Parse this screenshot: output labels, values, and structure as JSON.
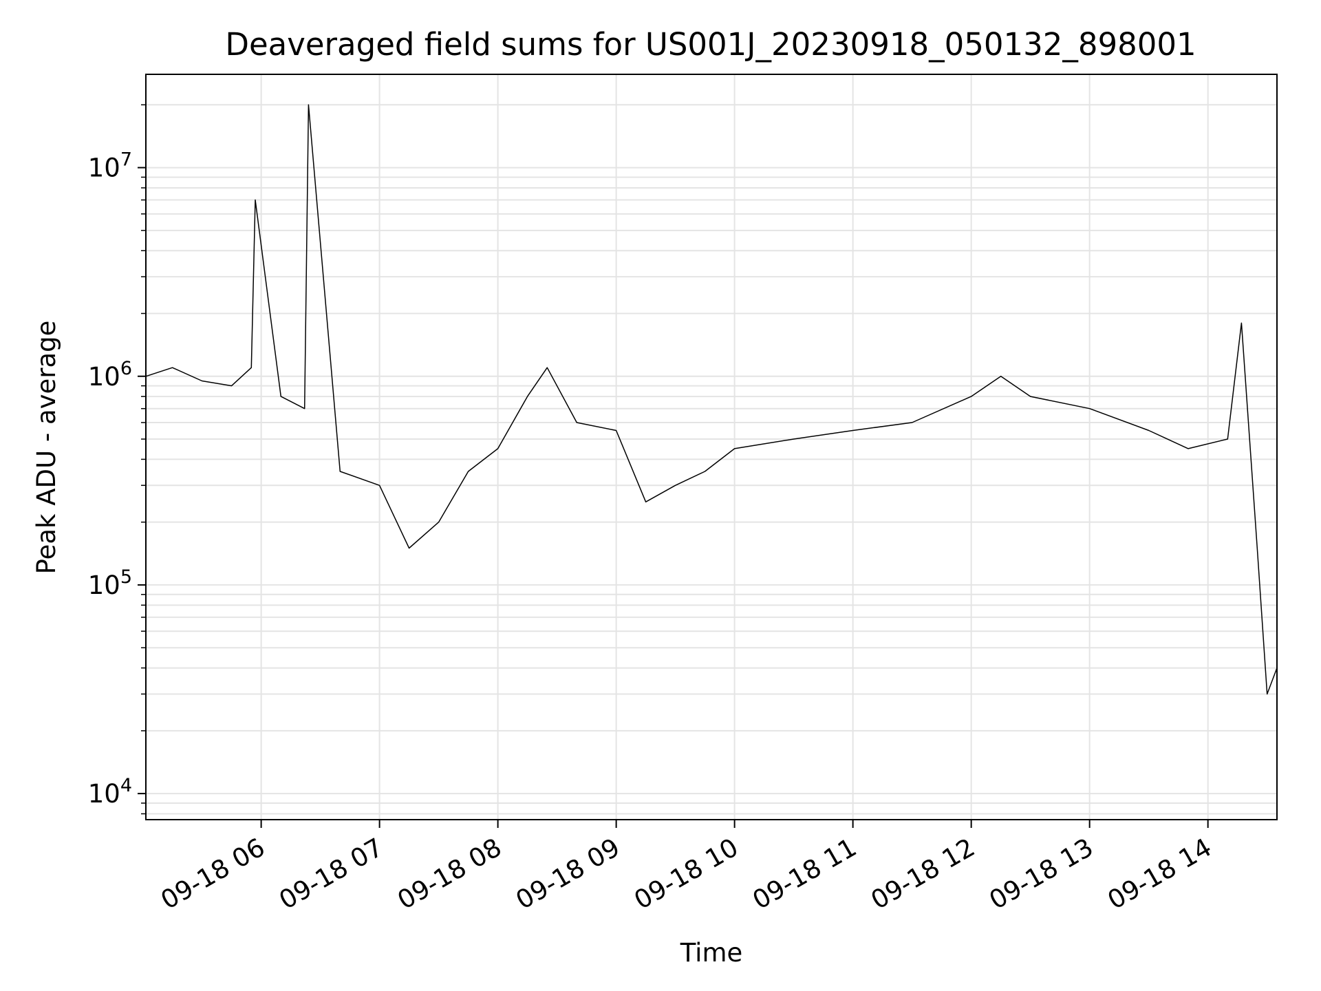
{
  "chart_data": {
    "type": "line",
    "title": "Deaveraged field sums for US001J_20230918_050132_898001",
    "xlabel": "Time",
    "ylabel": "Peak ADU - average",
    "y_scale": "log",
    "ylim": [
      7500,
      28000000
    ],
    "xlim": [
      "2023-09-18 05:01:32",
      "2023-09-18 14:35:00"
    ],
    "grid": true,
    "line_color": "#000000",
    "x_ticks": [
      {
        "time": "2023-09-18 06:00",
        "label": "09-18 06"
      },
      {
        "time": "2023-09-18 07:00",
        "label": "09-18 07"
      },
      {
        "time": "2023-09-18 08:00",
        "label": "09-18 08"
      },
      {
        "time": "2023-09-18 09:00",
        "label": "09-18 09"
      },
      {
        "time": "2023-09-18 10:00",
        "label": "09-18 10"
      },
      {
        "time": "2023-09-18 11:00",
        "label": "09-18 11"
      },
      {
        "time": "2023-09-18 12:00",
        "label": "09-18 12"
      },
      {
        "time": "2023-09-18 13:00",
        "label": "09-18 13"
      },
      {
        "time": "2023-09-18 14:00",
        "label": "09-18 14"
      }
    ],
    "y_ticks": [
      {
        "value": 10000,
        "base": "10",
        "exp": "4"
      },
      {
        "value": 100000,
        "base": "10",
        "exp": "5"
      },
      {
        "value": 1000000,
        "base": "10",
        "exp": "6"
      },
      {
        "value": 10000000,
        "base": "10",
        "exp": "7"
      }
    ],
    "series": [
      {
        "values": [
          {
            "t": "2023-09-18 05:01:32",
            "y": 1000000
          },
          {
            "t": "2023-09-18 05:15",
            "y": 1100000
          },
          {
            "t": "2023-09-18 05:30",
            "y": 950000
          },
          {
            "t": "2023-09-18 05:45",
            "y": 900000
          },
          {
            "t": "2023-09-18 05:55",
            "y": 1100000
          },
          {
            "t": "2023-09-18 05:57",
            "y": 7000000
          },
          {
            "t": "2023-09-18 06:10",
            "y": 800000
          },
          {
            "t": "2023-09-18 06:22",
            "y": 700000
          },
          {
            "t": "2023-09-18 06:24",
            "y": 20000000
          },
          {
            "t": "2023-09-18 06:40",
            "y": 350000
          },
          {
            "t": "2023-09-18 07:00",
            "y": 300000
          },
          {
            "t": "2023-09-18 07:15",
            "y": 150000
          },
          {
            "t": "2023-09-18 07:30",
            "y": 200000
          },
          {
            "t": "2023-09-18 07:45",
            "y": 350000
          },
          {
            "t": "2023-09-18 08:00",
            "y": 450000
          },
          {
            "t": "2023-09-18 08:15",
            "y": 800000
          },
          {
            "t": "2023-09-18 08:25",
            "y": 1100000
          },
          {
            "t": "2023-09-18 08:40",
            "y": 600000
          },
          {
            "t": "2023-09-18 09:00",
            "y": 550000
          },
          {
            "t": "2023-09-18 09:15",
            "y": 250000
          },
          {
            "t": "2023-09-18 09:30",
            "y": 300000
          },
          {
            "t": "2023-09-18 09:45",
            "y": 350000
          },
          {
            "t": "2023-09-18 10:00",
            "y": 450000
          },
          {
            "t": "2023-09-18 10:30",
            "y": 500000
          },
          {
            "t": "2023-09-18 11:00",
            "y": 550000
          },
          {
            "t": "2023-09-18 11:30",
            "y": 600000
          },
          {
            "t": "2023-09-18 12:00",
            "y": 800000
          },
          {
            "t": "2023-09-18 12:15",
            "y": 1000000
          },
          {
            "t": "2023-09-18 12:30",
            "y": 800000
          },
          {
            "t": "2023-09-18 13:00",
            "y": 700000
          },
          {
            "t": "2023-09-18 13:30",
            "y": 550000
          },
          {
            "t": "2023-09-18 13:50",
            "y": 450000
          },
          {
            "t": "2023-09-18 14:10",
            "y": 500000
          },
          {
            "t": "2023-09-18 14:17",
            "y": 1800000
          },
          {
            "t": "2023-09-18 14:25",
            "y": 150000
          },
          {
            "t": "2023-09-18 14:30",
            "y": 30000
          },
          {
            "t": "2023-09-18 14:35",
            "y": 40000
          }
        ]
      }
    ]
  }
}
